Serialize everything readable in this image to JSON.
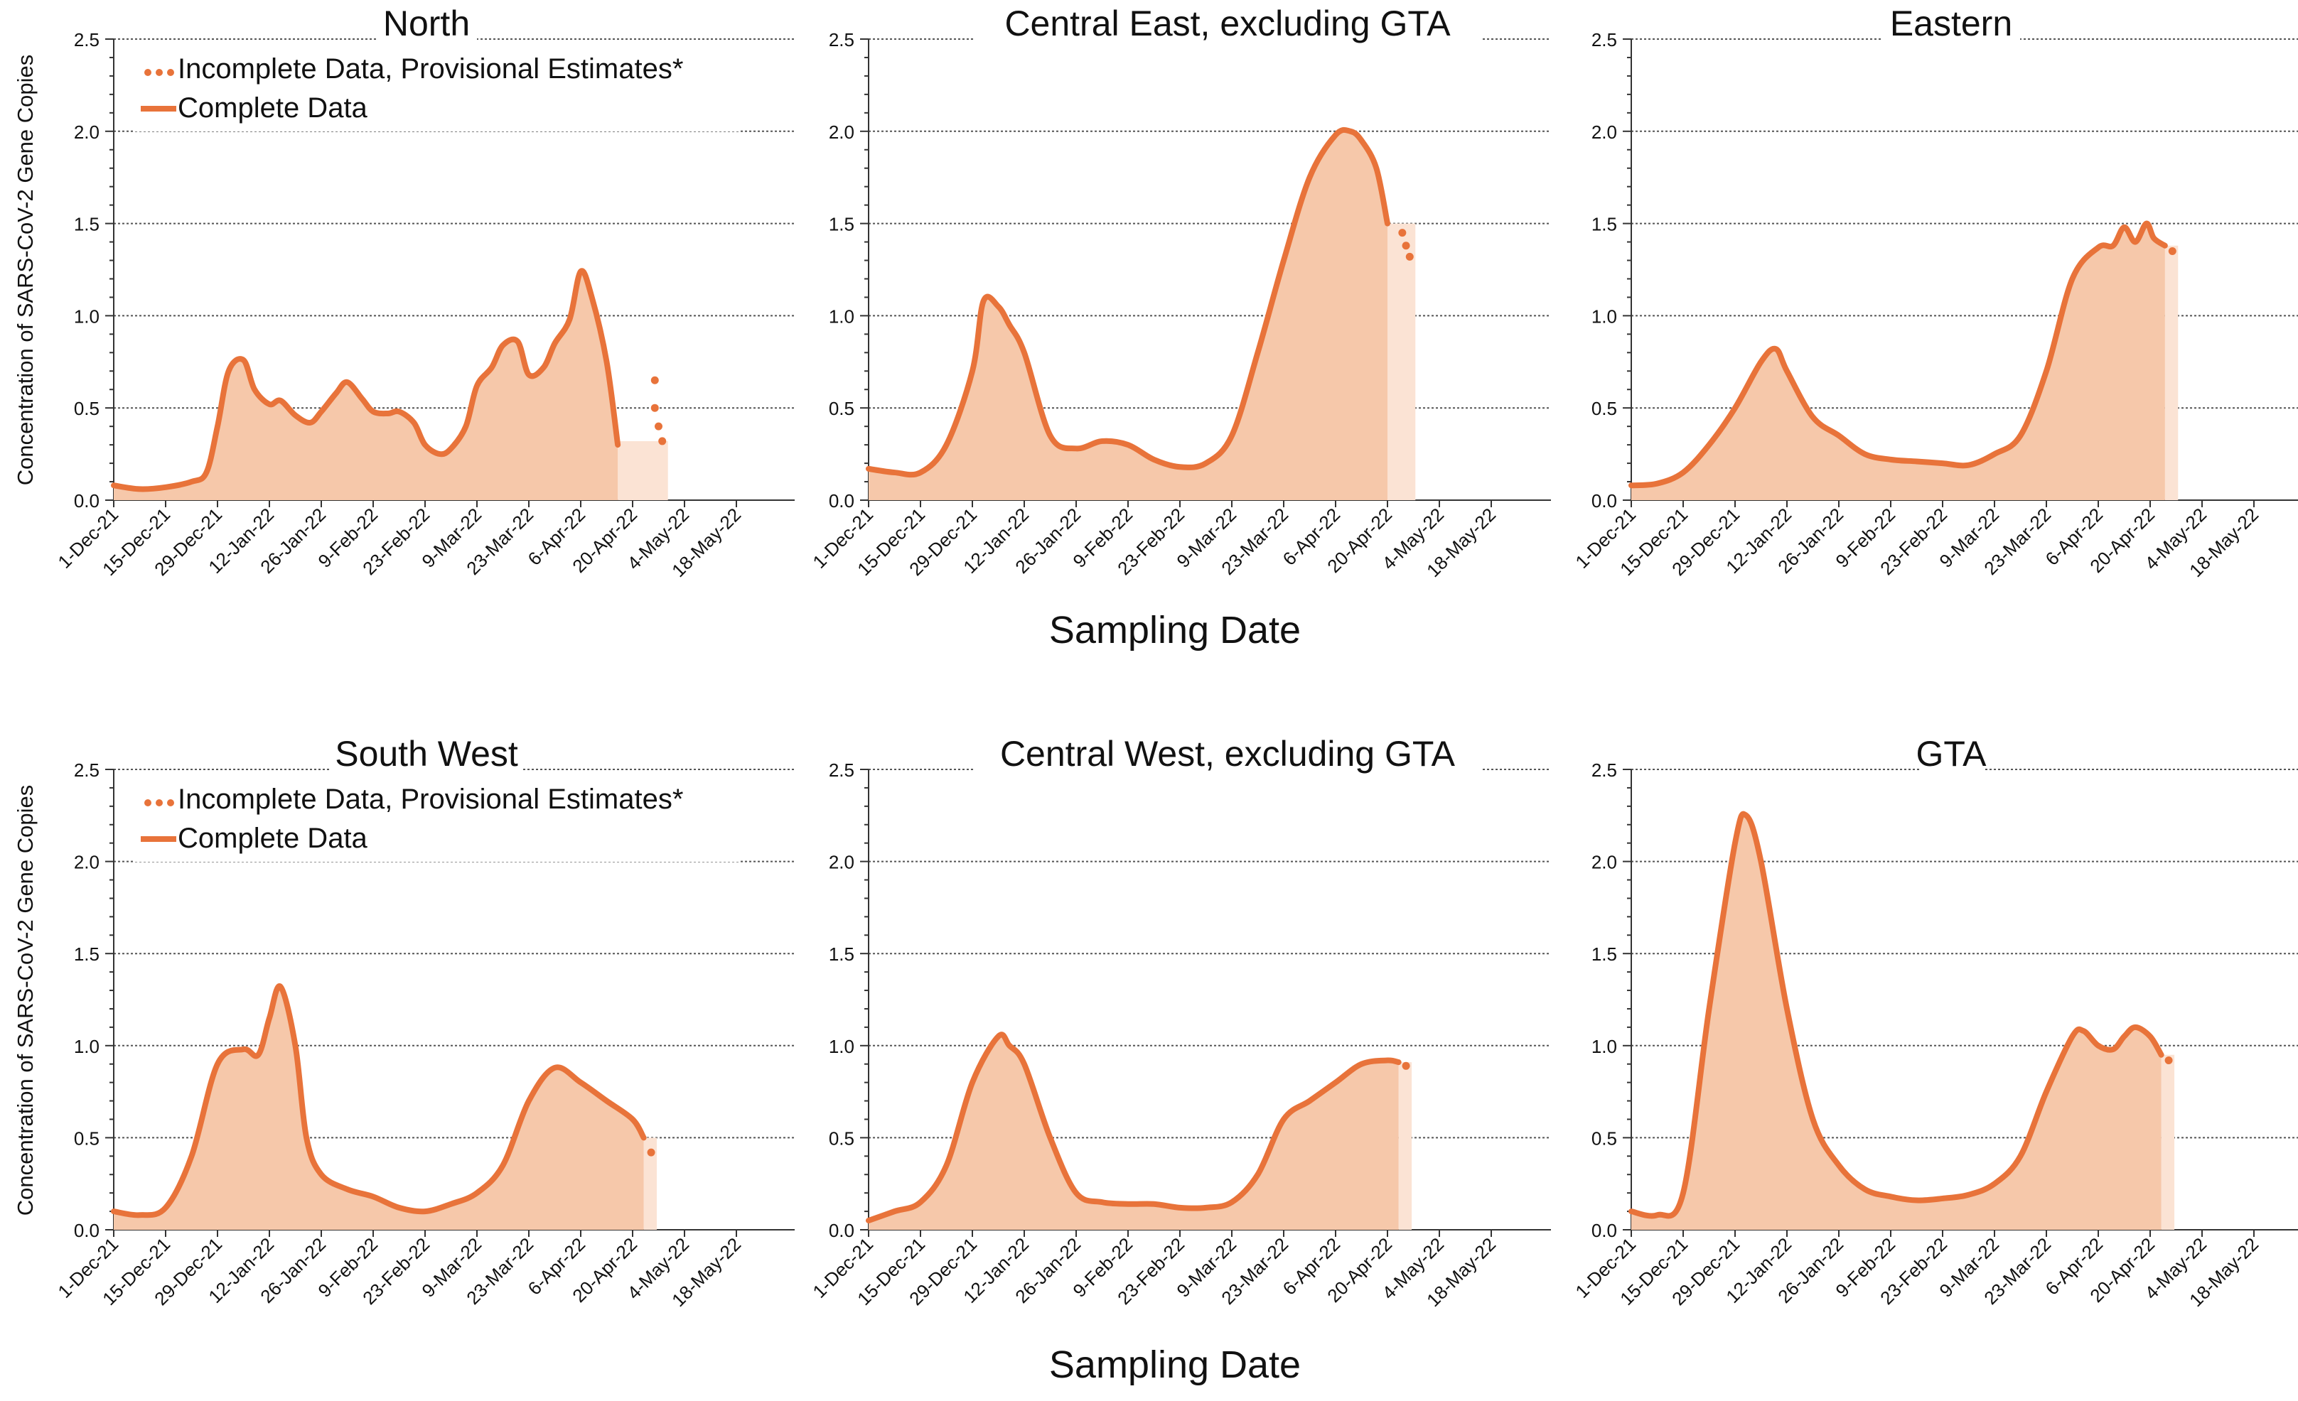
{
  "common": {
    "ylabel": "Concentration of SARS-CoV-2 Gene Copies",
    "xlabel": "Sampling Date",
    "yticks": [
      "0.0",
      "0.5",
      "1.0",
      "1.5",
      "2.0",
      "2.5"
    ],
    "x_ticks": [
      "1-Dec-21",
      "15-Dec-21",
      "29-Dec-21",
      "12-Jan-22",
      "26-Jan-22",
      "9-Feb-22",
      "23-Feb-22",
      "9-Mar-22",
      "23-Mar-22",
      "6-Apr-22",
      "20-Apr-22",
      "4-May-22",
      "18-May-22"
    ],
    "legend": {
      "incomplete": "Incomplete Data, Provisional Estimates*",
      "complete": "Complete Data"
    },
    "colors": {
      "line": "#E8733A",
      "fill": "#F6C8AA",
      "fill_light": "#FBE3D4",
      "grid": "#555555"
    }
  },
  "chart_data": [
    {
      "type": "area",
      "title": "North",
      "x": [
        "1-Dec-21",
        "8-Dec-21",
        "15-Dec-21",
        "22-Dec-21",
        "26-Dec-21",
        "29-Dec-21",
        "1-Jan-22",
        "5-Jan-22",
        "8-Jan-22",
        "12-Jan-22",
        "15-Jan-22",
        "19-Jan-22",
        "23-Jan-22",
        "26-Jan-22",
        "30-Jan-22",
        "2-Feb-22",
        "6-Feb-22",
        "9-Feb-22",
        "13-Feb-22",
        "16-Feb-22",
        "20-Feb-22",
        "23-Feb-22",
        "27-Feb-22",
        "2-Mar-22",
        "6-Mar-22",
        "9-Mar-22",
        "13-Mar-22",
        "16-Mar-22",
        "20-Mar-22",
        "23-Mar-22",
        "27-Mar-22",
        "30-Mar-22",
        "3-Apr-22",
        "6-Apr-22",
        "9-Apr-22",
        "13-Apr-22",
        "16-Apr-22",
        "20-Apr-22",
        "23-Apr-22",
        "26-Apr-22",
        "28-Apr-22"
      ],
      "y": [
        0.08,
        0.06,
        0.07,
        0.1,
        0.15,
        0.4,
        0.7,
        0.76,
        0.6,
        0.52,
        0.54,
        0.46,
        0.42,
        0.48,
        0.58,
        0.64,
        0.55,
        0.48,
        0.47,
        0.48,
        0.42,
        0.3,
        0.25,
        0.28,
        0.4,
        0.62,
        0.72,
        0.84,
        0.86,
        0.68,
        0.72,
        0.85,
        0.98,
        1.24,
        1.1,
        0.75,
        0.3,
        0.3,
        0.3,
        0.3,
        0.3
      ],
      "complete_until_index": 36,
      "provisional": [
        {
          "x": "26-Apr-22",
          "y": 0.65
        },
        {
          "x": "26-Apr-22",
          "y": 0.5
        },
        {
          "x": "27-Apr-22",
          "y": 0.4
        },
        {
          "x": "28-Apr-22",
          "y": 0.32
        }
      ],
      "ylim": [
        0,
        2.5
      ],
      "show_legend": true
    },
    {
      "type": "area",
      "title": "Central East, excluding GTA",
      "x": [
        "1-Dec-21",
        "8-Dec-21",
        "15-Dec-21",
        "22-Dec-21",
        "29-Dec-21",
        "1-Jan-22",
        "5-Jan-22",
        "8-Jan-22",
        "12-Jan-22",
        "19-Jan-22",
        "26-Jan-22",
        "2-Feb-22",
        "9-Feb-22",
        "16-Feb-22",
        "23-Feb-22",
        "2-Mar-22",
        "9-Mar-22",
        "16-Mar-22",
        "23-Mar-22",
        "30-Mar-22",
        "6-Apr-22",
        "10-Apr-22",
        "13-Apr-22",
        "17-Apr-22",
        "20-Apr-22",
        "23-Apr-22"
      ],
      "y": [
        0.17,
        0.15,
        0.15,
        0.3,
        0.7,
        1.08,
        1.05,
        0.95,
        0.8,
        0.35,
        0.28,
        0.32,
        0.3,
        0.22,
        0.18,
        0.2,
        0.35,
        0.8,
        1.3,
        1.75,
        1.98,
        2.0,
        1.95,
        1.8,
        1.5,
        1.45
      ],
      "complete_until_index": 24,
      "provisional": [
        {
          "x": "24-Apr-22",
          "y": 1.45
        },
        {
          "x": "25-Apr-22",
          "y": 1.38
        },
        {
          "x": "26-Apr-22",
          "y": 1.32
        }
      ],
      "ylim": [
        0,
        2.5
      ],
      "show_legend": false
    },
    {
      "type": "area",
      "title": "Eastern",
      "x": [
        "1-Dec-21",
        "8-Dec-21",
        "15-Dec-21",
        "22-Dec-21",
        "29-Dec-21",
        "5-Jan-22",
        "9-Jan-22",
        "12-Jan-22",
        "19-Jan-22",
        "26-Jan-22",
        "2-Feb-22",
        "9-Feb-22",
        "16-Feb-22",
        "23-Feb-22",
        "2-Mar-22",
        "9-Mar-22",
        "16-Mar-22",
        "23-Mar-22",
        "30-Mar-22",
        "6-Apr-22",
        "10-Apr-22",
        "13-Apr-22",
        "16-Apr-22",
        "19-Apr-22",
        "21-Apr-22",
        "24-Apr-22"
      ],
      "y": [
        0.08,
        0.09,
        0.15,
        0.3,
        0.5,
        0.75,
        0.82,
        0.7,
        0.45,
        0.35,
        0.25,
        0.22,
        0.21,
        0.2,
        0.19,
        0.25,
        0.35,
        0.7,
        1.2,
        1.37,
        1.38,
        1.48,
        1.4,
        1.5,
        1.42,
        1.38
      ],
      "complete_until_index": 25,
      "provisional": [
        {
          "x": "26-Apr-22",
          "y": 1.35
        }
      ],
      "ylim": [
        0,
        2.5
      ],
      "show_legend": false
    },
    {
      "type": "area",
      "title": "South West",
      "x": [
        "1-Dec-21",
        "8-Dec-21",
        "15-Dec-21",
        "22-Dec-21",
        "29-Dec-21",
        "5-Jan-22",
        "9-Jan-22",
        "12-Jan-22",
        "15-Jan-22",
        "19-Jan-22",
        "22-Jan-22",
        "26-Jan-22",
        "2-Feb-22",
        "9-Feb-22",
        "16-Feb-22",
        "23-Feb-22",
        "2-Mar-22",
        "9-Mar-22",
        "16-Mar-22",
        "23-Mar-22",
        "30-Mar-22",
        "6-Apr-22",
        "13-Apr-22",
        "20-Apr-22",
        "23-Apr-22"
      ],
      "y": [
        0.1,
        0.08,
        0.12,
        0.4,
        0.9,
        0.98,
        0.95,
        1.15,
        1.32,
        1.0,
        0.5,
        0.3,
        0.22,
        0.18,
        0.12,
        0.1,
        0.14,
        0.2,
        0.35,
        0.7,
        0.88,
        0.8,
        0.7,
        0.6,
        0.5
      ],
      "complete_until_index": 24,
      "provisional": [
        {
          "x": "25-Apr-22",
          "y": 0.42
        }
      ],
      "ylim": [
        0,
        2.5
      ],
      "show_legend": true
    },
    {
      "type": "area",
      "title": "Central West, excluding GTA",
      "x": [
        "1-Dec-21",
        "8-Dec-21",
        "15-Dec-21",
        "22-Dec-21",
        "29-Dec-21",
        "5-Jan-22",
        "8-Jan-22",
        "12-Jan-22",
        "19-Jan-22",
        "26-Jan-22",
        "2-Feb-22",
        "9-Feb-22",
        "16-Feb-22",
        "23-Feb-22",
        "2-Mar-22",
        "9-Mar-22",
        "16-Mar-22",
        "23-Mar-22",
        "30-Mar-22",
        "6-Apr-22",
        "13-Apr-22",
        "20-Apr-22",
        "23-Apr-22"
      ],
      "y": [
        0.05,
        0.1,
        0.15,
        0.35,
        0.8,
        1.05,
        1.0,
        0.9,
        0.5,
        0.2,
        0.15,
        0.14,
        0.14,
        0.12,
        0.12,
        0.15,
        0.3,
        0.6,
        0.7,
        0.8,
        0.9,
        0.92,
        0.91
      ],
      "complete_until_index": 22,
      "provisional": [
        {
          "x": "25-Apr-22",
          "y": 0.89
        }
      ],
      "ylim": [
        0,
        2.5
      ],
      "show_legend": false
    },
    {
      "type": "area",
      "title": "GTA",
      "x": [
        "1-Dec-21",
        "8-Dec-21",
        "15-Dec-21",
        "22-Dec-21",
        "29-Dec-21",
        "1-Jan-22",
        "5-Jan-22",
        "12-Jan-22",
        "19-Jan-22",
        "26-Jan-22",
        "2-Feb-22",
        "9-Feb-22",
        "16-Feb-22",
        "23-Feb-22",
        "2-Mar-22",
        "9-Mar-22",
        "16-Mar-22",
        "23-Mar-22",
        "30-Mar-22",
        "2-Apr-22",
        "6-Apr-22",
        "10-Apr-22",
        "13-Apr-22",
        "16-Apr-22",
        "20-Apr-22",
        "23-Apr-22"
      ],
      "y": [
        0.1,
        0.08,
        0.2,
        1.2,
        2.1,
        2.25,
        2.0,
        1.2,
        0.6,
        0.35,
        0.22,
        0.18,
        0.16,
        0.17,
        0.19,
        0.25,
        0.4,
        0.75,
        1.05,
        1.08,
        1.0,
        0.98,
        1.05,
        1.1,
        1.05,
        0.95
      ],
      "complete_until_index": 25,
      "provisional": [
        {
          "x": "25-Apr-22",
          "y": 0.92
        }
      ],
      "ylim": [
        0,
        2.5
      ],
      "show_legend": false
    }
  ]
}
